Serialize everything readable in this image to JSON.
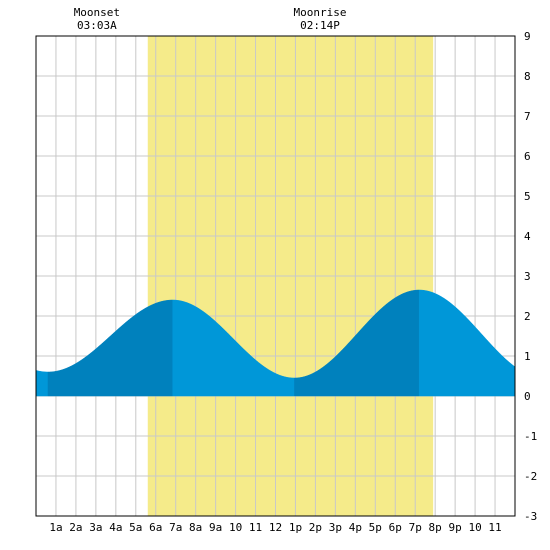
{
  "chart_data": {
    "type": "area",
    "xlim": [
      0,
      24
    ],
    "ylim": [
      -3,
      9
    ],
    "grid": true,
    "daylight": {
      "start": 5.6,
      "end": 19.9
    },
    "x_tick_labels": [
      "1a",
      "2a",
      "3a",
      "4a",
      "5a",
      "6a",
      "7a",
      "8a",
      "9a",
      "10",
      "11",
      "12",
      "1p",
      "2p",
      "3p",
      "4p",
      "5p",
      "6p",
      "7p",
      "8p",
      "9p",
      "10",
      "11"
    ],
    "y_tick_labels": [
      "9",
      "8",
      "7",
      "6",
      "5",
      "4",
      "3",
      "2",
      "1",
      "0",
      "-1",
      "-2",
      "-3"
    ],
    "tides": [
      {
        "time": 0.6,
        "height": 0.6
      },
      {
        "time": 6.85,
        "height": 2.4
      },
      {
        "time": 12.95,
        "height": 0.45
      },
      {
        "time": 19.2,
        "height": 2.65
      }
    ],
    "moon_events": [
      {
        "label": "Moonset",
        "time_label": "03:03A",
        "time": 3.05
      },
      {
        "label": "Moonrise",
        "time_label": "02:14P",
        "time": 14.23
      }
    ],
    "colors": {
      "water": "#0097d8",
      "water_dark": "#0081bd",
      "daylight": "#f5eb8a",
      "grid": "#c8c8c8",
      "axis": "#000000"
    }
  }
}
